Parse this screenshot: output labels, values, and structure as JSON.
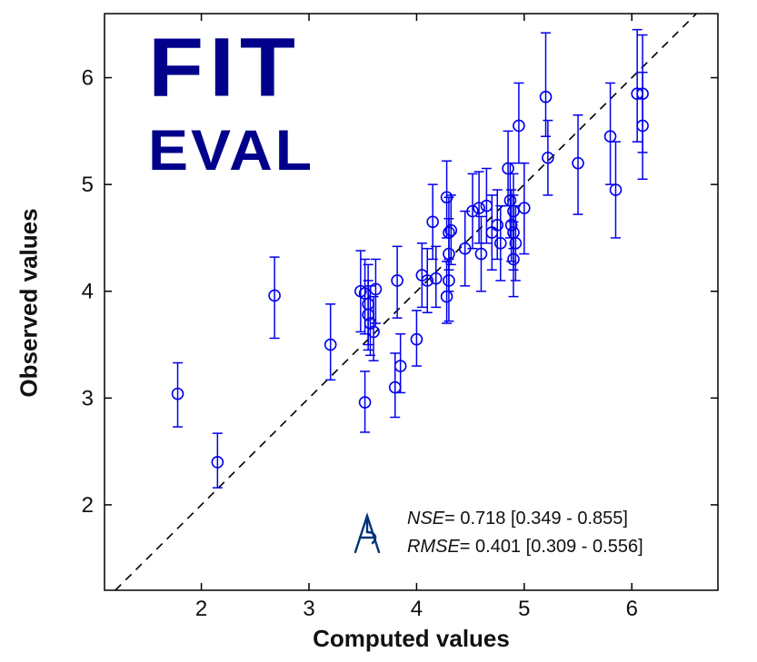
{
  "figure": {
    "background": "#ffffff"
  },
  "logo": {
    "line1": "FIT",
    "line2": "EVAL",
    "color": "#00008B"
  },
  "stats": {
    "nse_label": "NSE",
    "nse_value": "= 0.718  [0.349 - 0.855]",
    "rmse_label": "RMSE",
    "rmse_value": "= 0.401  [0.309 - 0.556]"
  },
  "chart_data": {
    "type": "scatter",
    "title": "",
    "xlabel": "Computed values",
    "ylabel": "Observed values",
    "xlim": [
      1.1,
      6.8
    ],
    "ylim": [
      1.2,
      6.6
    ],
    "x_ticks": [
      2,
      3,
      4,
      5,
      6
    ],
    "y_ticks": [
      2,
      3,
      4,
      5,
      6
    ],
    "grid": false,
    "identity_line": {
      "style": "dashed",
      "color": "#000000",
      "from": 1.2,
      "to": 6.6
    },
    "marker": {
      "shape": "circle",
      "color": "#0000EE",
      "fill": "none",
      "radius_px": 6
    },
    "error_bars": true,
    "point_format": [
      "x",
      "y",
      "err_lo",
      "err_hi"
    ],
    "points": [
      [
        1.78,
        3.04,
        2.73,
        3.33
      ],
      [
        2.15,
        2.4,
        2.16,
        2.67
      ],
      [
        2.68,
        3.96,
        3.56,
        4.32
      ],
      [
        3.2,
        3.5,
        3.17,
        3.88
      ],
      [
        3.48,
        4.0,
        3.62,
        4.38
      ],
      [
        3.52,
        3.98,
        3.6,
        4.3
      ],
      [
        3.55,
        3.88,
        3.5,
        4.25
      ],
      [
        3.55,
        3.78,
        3.45,
        4.1
      ],
      [
        3.57,
        3.7,
        3.4,
        4.05
      ],
      [
        3.6,
        3.62,
        3.35,
        3.95
      ],
      [
        3.52,
        2.96,
        2.68,
        3.25
      ],
      [
        3.62,
        4.02,
        3.7,
        4.3
      ],
      [
        3.8,
        3.1,
        2.82,
        3.42
      ],
      [
        3.85,
        3.3,
        3.05,
        3.6
      ],
      [
        3.82,
        4.1,
        3.75,
        4.42
      ],
      [
        4.0,
        3.55,
        3.3,
        3.82
      ],
      [
        4.05,
        4.15,
        3.85,
        4.45
      ],
      [
        4.1,
        4.1,
        3.8,
        4.4
      ],
      [
        4.18,
        4.12,
        3.85,
        4.42
      ],
      [
        4.15,
        4.65,
        4.3,
        5.0
      ],
      [
        4.28,
        4.88,
        4.5,
        5.22
      ],
      [
        4.3,
        4.55,
        4.2,
        4.88
      ],
      [
        4.32,
        4.57,
        4.25,
        4.9
      ],
      [
        4.3,
        4.35,
        4.0,
        4.68
      ],
      [
        4.28,
        3.95,
        3.7,
        4.28
      ],
      [
        4.3,
        4.1,
        3.72,
        4.3
      ],
      [
        4.45,
        4.4,
        4.05,
        4.75
      ],
      [
        4.52,
        4.75,
        4.4,
        5.1
      ],
      [
        4.58,
        4.78,
        4.45,
        5.12
      ],
      [
        4.6,
        4.35,
        4.0,
        4.7
      ],
      [
        4.65,
        4.8,
        4.45,
        5.15
      ],
      [
        4.7,
        4.55,
        4.2,
        4.9
      ],
      [
        4.75,
        4.62,
        4.3,
        4.95
      ],
      [
        4.78,
        4.45,
        4.1,
        4.8
      ],
      [
        4.85,
        5.15,
        4.8,
        5.5
      ],
      [
        4.87,
        4.85,
        4.5,
        5.2
      ],
      [
        4.9,
        4.75,
        4.4,
        5.1
      ],
      [
        4.88,
        4.62,
        4.28,
        4.95
      ],
      [
        4.9,
        4.55,
        4.2,
        4.9
      ],
      [
        4.92,
        4.45,
        4.1,
        4.8
      ],
      [
        4.9,
        4.3,
        3.95,
        4.65
      ],
      [
        4.95,
        5.55,
        5.2,
        5.95
      ],
      [
        5.0,
        4.78,
        4.35,
        5.2
      ],
      [
        5.2,
        5.82,
        5.45,
        6.42
      ],
      [
        5.22,
        5.25,
        4.9,
        5.6
      ],
      [
        5.5,
        5.2,
        4.72,
        5.65
      ],
      [
        5.8,
        5.45,
        5.0,
        5.95
      ],
      [
        5.85,
        4.95,
        4.5,
        5.4
      ],
      [
        6.05,
        5.85,
        5.4,
        6.45
      ],
      [
        6.1,
        5.85,
        5.3,
        6.4
      ],
      [
        6.1,
        5.55,
        5.05,
        6.05
      ]
    ]
  }
}
